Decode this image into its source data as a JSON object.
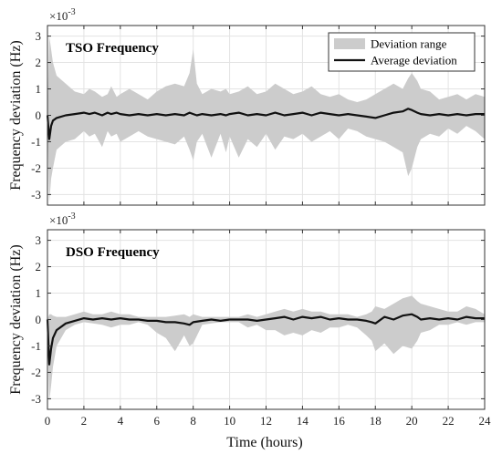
{
  "chart_data": {
    "type": "area",
    "xlabel": "Time (hours)",
    "x_ticks": [
      0,
      2,
      4,
      6,
      8,
      10,
      12,
      14,
      16,
      18,
      20,
      22,
      24
    ],
    "xlim": [
      0,
      24
    ],
    "ylim": [
      -3.4,
      3.4
    ],
    "y_ticks": [
      -3,
      -2,
      -1,
      0,
      1,
      2,
      3
    ],
    "y_multiplier": "×10",
    "y_multiplier_exp": "-3",
    "ylabel": "Frequency deviation (Hz)",
    "grid": true,
    "legend": {
      "position": "top-right",
      "entries": [
        "Deviation range",
        "Average deviation"
      ]
    },
    "colors": {
      "range_fill": "#cccccc",
      "average_line": "#111111"
    },
    "panels": [
      {
        "title": "TSO Frequency",
        "show_legend": true,
        "x": [
          0,
          0.1,
          0.2,
          0.3,
          0.5,
          1.0,
          1.5,
          2.0,
          2.3,
          2.6,
          3.0,
          3.3,
          3.5,
          3.8,
          4.0,
          4.5,
          5.0,
          5.5,
          6.0,
          6.5,
          7.0,
          7.5,
          7.8,
          8.0,
          8.2,
          8.5,
          9.0,
          9.5,
          9.8,
          10.0,
          10.5,
          11.0,
          11.5,
          12.0,
          12.5,
          13.0,
          13.5,
          14.0,
          14.5,
          15.0,
          15.5,
          16.0,
          16.5,
          17.0,
          17.5,
          18.0,
          18.5,
          19.0,
          19.5,
          19.8,
          20.0,
          20.3,
          20.5,
          21.0,
          21.5,
          22.0,
          22.5,
          23.0,
          23.5,
          24.0
        ],
        "range_upper": [
          0.0,
          3.0,
          2.5,
          2.0,
          1.5,
          1.2,
          0.9,
          0.8,
          1.0,
          0.9,
          0.7,
          0.8,
          1.1,
          0.7,
          0.8,
          1.0,
          0.8,
          0.6,
          0.9,
          1.1,
          1.2,
          1.1,
          1.6,
          2.5,
          1.2,
          0.8,
          1.0,
          0.9,
          1.0,
          0.8,
          0.9,
          1.1,
          0.8,
          0.9,
          1.2,
          1.0,
          0.8,
          0.9,
          1.1,
          0.8,
          0.7,
          0.8,
          0.6,
          0.5,
          0.6,
          0.8,
          1.0,
          1.2,
          1.0,
          1.4,
          1.6,
          1.3,
          1.0,
          0.9,
          0.6,
          0.7,
          0.8,
          0.6,
          0.8,
          0.7
        ],
        "range_lower": [
          0.0,
          -3.3,
          -2.4,
          -2.0,
          -1.3,
          -1.0,
          -0.9,
          -0.6,
          -0.8,
          -0.7,
          -1.2,
          -0.6,
          -0.8,
          -0.7,
          -1.0,
          -0.8,
          -0.6,
          -0.8,
          -0.9,
          -1.0,
          -1.1,
          -0.8,
          -1.3,
          -1.7,
          -1.0,
          -0.7,
          -1.6,
          -0.7,
          -1.4,
          -0.8,
          -1.6,
          -0.9,
          -1.2,
          -0.7,
          -1.3,
          -0.8,
          -0.9,
          -0.7,
          -1.0,
          -0.8,
          -0.6,
          -0.9,
          -0.5,
          -0.6,
          -0.8,
          -0.9,
          -1.0,
          -1.2,
          -1.4,
          -2.3,
          -2.0,
          -1.2,
          -0.9,
          -0.7,
          -0.8,
          -0.5,
          -0.7,
          -0.4,
          -0.6,
          -0.9
        ],
        "average": [
          0.0,
          -0.9,
          -0.4,
          -0.2,
          -0.1,
          0.0,
          0.05,
          0.1,
          0.05,
          0.1,
          0.0,
          0.1,
          0.05,
          0.1,
          0.05,
          0.0,
          0.05,
          0.0,
          0.05,
          0.0,
          0.05,
          0.0,
          0.1,
          0.05,
          0.0,
          0.05,
          0.0,
          0.05,
          0.0,
          0.05,
          0.1,
          0.0,
          0.05,
          0.0,
          0.1,
          0.0,
          0.05,
          0.1,
          0.0,
          0.1,
          0.05,
          0.0,
          0.05,
          0.0,
          -0.05,
          -0.1,
          0.0,
          0.1,
          0.15,
          0.25,
          0.2,
          0.1,
          0.05,
          0.0,
          0.05,
          0.0,
          0.05,
          0.0,
          0.05,
          0.05
        ]
      },
      {
        "title": "DSO Frequency",
        "show_legend": false,
        "x": [
          0,
          0.1,
          0.2,
          0.3,
          0.5,
          1.0,
          1.5,
          2.0,
          2.5,
          3.0,
          3.5,
          4.0,
          4.5,
          5.0,
          5.5,
          6.0,
          6.5,
          7.0,
          7.5,
          7.8,
          8.0,
          8.5,
          9.0,
          9.5,
          10.0,
          10.5,
          11.0,
          11.5,
          12.0,
          12.5,
          13.0,
          13.5,
          14.0,
          14.5,
          15.0,
          15.5,
          16.0,
          16.5,
          17.0,
          17.5,
          17.8,
          18.0,
          18.5,
          19.0,
          19.5,
          20.0,
          20.3,
          20.5,
          21.0,
          21.5,
          22.0,
          22.5,
          23.0,
          23.5,
          24.0
        ],
        "range_upper": [
          0.0,
          0.2,
          0.2,
          0.15,
          0.1,
          0.1,
          0.2,
          0.3,
          0.2,
          0.2,
          0.3,
          0.2,
          0.2,
          0.1,
          0.1,
          0.1,
          0.1,
          0.15,
          0.2,
          0.1,
          0.2,
          0.1,
          0.1,
          0.1,
          0.1,
          0.1,
          0.2,
          0.1,
          0.2,
          0.3,
          0.4,
          0.3,
          0.4,
          0.3,
          0.3,
          0.2,
          0.2,
          0.2,
          0.1,
          0.2,
          0.3,
          0.5,
          0.4,
          0.6,
          0.8,
          0.9,
          0.7,
          0.6,
          0.5,
          0.4,
          0.3,
          0.3,
          0.5,
          0.4,
          0.2
        ],
        "range_lower": [
          0.0,
          -3.1,
          -2.5,
          -1.8,
          -1.0,
          -0.4,
          -0.2,
          -0.1,
          -0.15,
          -0.2,
          -0.3,
          -0.2,
          -0.2,
          -0.1,
          -0.2,
          -0.5,
          -0.7,
          -1.2,
          -0.6,
          -1.0,
          -0.9,
          -0.2,
          -0.15,
          -0.1,
          -0.1,
          -0.1,
          -0.3,
          -0.2,
          -0.4,
          -0.4,
          -0.6,
          -0.5,
          -0.6,
          -0.4,
          -0.5,
          -0.3,
          -0.3,
          -0.2,
          -0.3,
          -0.6,
          -0.8,
          -1.2,
          -0.9,
          -1.3,
          -1.0,
          -1.1,
          -0.8,
          -0.5,
          -0.4,
          -0.2,
          -0.2,
          -0.1,
          -0.2,
          -0.1,
          -0.1
        ],
        "average": [
          0.0,
          -1.7,
          -1.1,
          -0.7,
          -0.4,
          -0.15,
          -0.05,
          0.05,
          0.0,
          0.05,
          0.0,
          0.05,
          0.0,
          0.0,
          -0.05,
          -0.05,
          -0.1,
          -0.1,
          -0.15,
          -0.2,
          -0.1,
          -0.05,
          0.0,
          -0.05,
          0.0,
          0.0,
          0.0,
          -0.05,
          0.0,
          0.05,
          0.1,
          0.0,
          0.1,
          0.05,
          0.1,
          0.0,
          0.05,
          0.0,
          0.0,
          -0.05,
          -0.1,
          -0.15,
          0.1,
          0.0,
          0.15,
          0.2,
          0.1,
          0.0,
          0.05,
          0.0,
          0.05,
          0.0,
          0.1,
          0.05,
          0.05
        ]
      }
    ]
  }
}
